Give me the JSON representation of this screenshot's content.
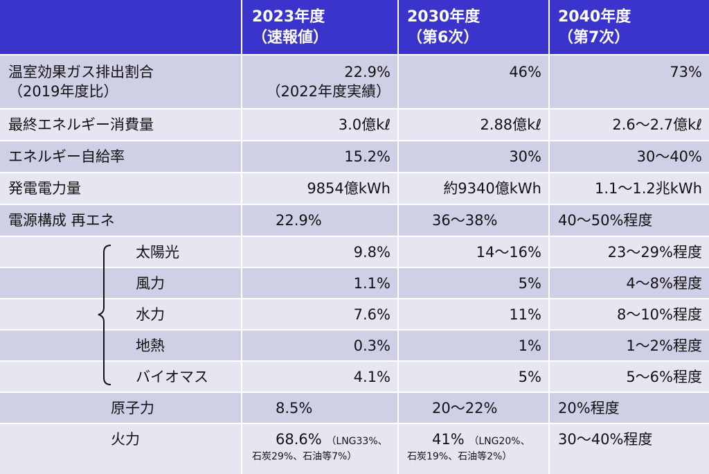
{
  "header": {
    "col1": "",
    "col2_line1": "2023年度",
    "col2_line2": "（速報値）",
    "col3_line1": "2030年度",
    "col3_line2": "（第6次）",
    "col4_line1": "2040年度",
    "col4_line2": "（第7次）"
  },
  "rows": [
    {
      "label_line1": "温室効果ガス排出割合",
      "label_line2": "（2019年度比）",
      "v2023_line1": "22.9%",
      "v2023_line2": "（2022年度実績）",
      "v2030": "46%",
      "v2040": "73%"
    },
    {
      "label": "最終エネルギー消費量",
      "v2023": "3.0億kℓ",
      "v2030": "2.88億kℓ",
      "v2040": "2.6～2.7億kℓ"
    },
    {
      "label": "エネルギー自給率",
      "v2023": "15.2%",
      "v2030": "30%",
      "v2040": "30～40%"
    },
    {
      "label": "発電電力量",
      "v2023": "9854億kWh",
      "v2030": "約9340億kWh",
      "v2040": "1.1～1.2兆kWh"
    },
    {
      "label": "電源構成 再エネ",
      "v2023": "22.9%",
      "v2030": "36～38%",
      "v2040": "40～50%程度"
    },
    {
      "label": "太陽光",
      "v2023": "9.8%",
      "v2030": "14～16%",
      "v2040": "23～29%程度"
    },
    {
      "label": "風力",
      "v2023": "1.1%",
      "v2030": "5%",
      "v2040": "4～8%程度"
    },
    {
      "label": "水力",
      "v2023": "7.6%",
      "v2030": "11%",
      "v2040": "8～10%程度"
    },
    {
      "label": "地熱",
      "v2023": "0.3%",
      "v2030": "1%",
      "v2040": "1～2%程度"
    },
    {
      "label": "バイオマス",
      "v2023": "4.1%",
      "v2030": "5%",
      "v2040": "5～6%程度"
    },
    {
      "label": "原子力",
      "v2023": "8.5%",
      "v2030": "20～22%",
      "v2040": "20%程度"
    },
    {
      "label": "火力",
      "v2023_main": "68.6%",
      "v2023_note1": "（LNG33%、",
      "v2023_note2": "石炭29%、石油等7%）",
      "v2030_main": "41%",
      "v2030_note1": "（LNG20%、",
      "v2030_note2": "石炭19%、石油等2%）",
      "v2040": "30～40%程度"
    }
  ]
}
